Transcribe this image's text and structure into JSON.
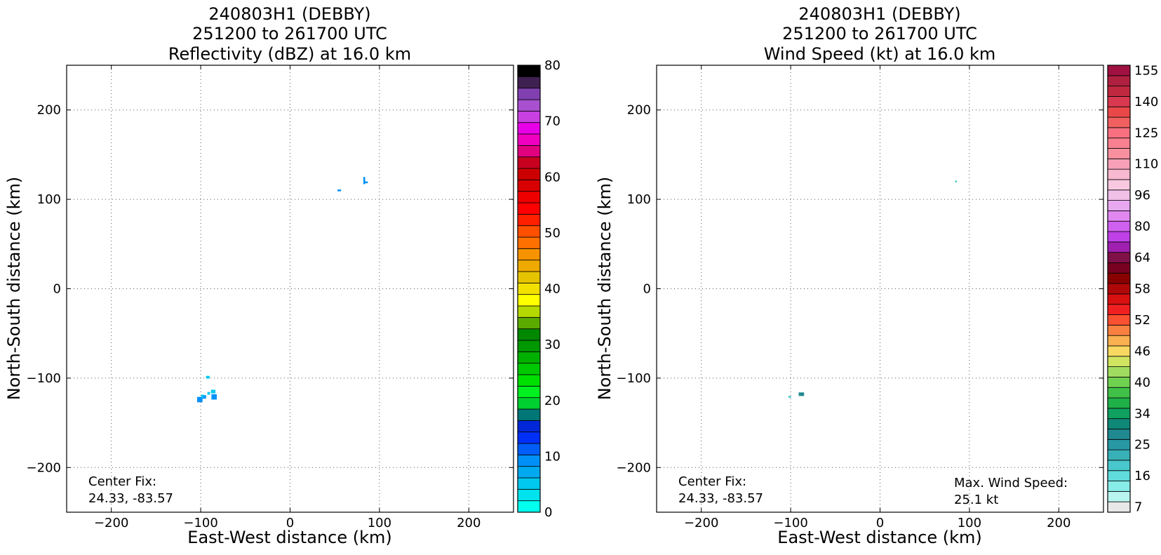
{
  "chart_data": [
    {
      "type": "heatmap",
      "title": [
        "240803H1 (DEBBY)",
        "251200 to 261700 UTC",
        "Reflectivity (dBZ) at 16.0 km"
      ],
      "xlabel": "East-West distance (km)",
      "ylabel": "North-South distance (km)",
      "xlim": [
        -250,
        250
      ],
      "ylim": [
        -250,
        250
      ],
      "xticks": [
        -200,
        -100,
        0,
        100,
        200
      ],
      "yticks": [
        -200,
        -100,
        0,
        100,
        200
      ],
      "grid": "dotted",
      "annotations": [
        {
          "text": [
            "Center Fix:",
            "24.33, -83.57"
          ],
          "position": "bottom-left"
        }
      ],
      "colorbar": {
        "min": 0,
        "max": 80,
        "tick_values": [
          0,
          10,
          20,
          30,
          40,
          50,
          60,
          70,
          80
        ],
        "colors": [
          "#00ffee",
          "#00e3ee",
          "#00c8ee",
          "#00a9f0",
          "#0090f8",
          "#005ef8",
          "#0030f8",
          "#0028d8",
          "#007777",
          "#00d030",
          "#00f020",
          "#00e000",
          "#00c800",
          "#00b000",
          "#009800",
          "#008800",
          "#5aaa00",
          "#b4d800",
          "#ffff00",
          "#f2e000",
          "#e6c400",
          "#eeaa00",
          "#f79200",
          "#ff7000",
          "#ff5000",
          "#ff2000",
          "#ff0000",
          "#ee0000",
          "#d80000",
          "#cc0000",
          "#c80020",
          "#e00080",
          "#f000c0",
          "#e800e8",
          "#c840e0",
          "#a850d0",
          "#8040b0",
          "#402050",
          "#000000"
        ]
      },
      "cells": [
        {
          "x": 55,
          "y": 110,
          "w": 4,
          "h": 2,
          "dbz": 10
        },
        {
          "x": 83,
          "y": 121,
          "w": 2,
          "h": 8,
          "dbz": 10
        },
        {
          "x": 85,
          "y": 119,
          "w": 4,
          "h": 2,
          "dbz": 10
        },
        {
          "x": -92,
          "y": -99,
          "w": 4,
          "h": 3,
          "dbz": 5
        },
        {
          "x": -101,
          "y": -124,
          "w": 6,
          "h": 6,
          "dbz": 10
        },
        {
          "x": -96,
          "y": -121,
          "w": 4,
          "h": 4,
          "dbz": 10
        },
        {
          "x": -85,
          "y": -121,
          "w": 6,
          "h": 6,
          "dbz": 10
        },
        {
          "x": -86,
          "y": -115,
          "w": 5,
          "h": 4,
          "dbz": 5
        },
        {
          "x": -91,
          "y": -117,
          "w": 3,
          "h": 3,
          "dbz": 5
        },
        {
          "x": -98,
          "y": -120,
          "w": 3,
          "h": 3,
          "dbz": 5
        }
      ]
    },
    {
      "type": "heatmap",
      "title": [
        "240803H1 (DEBBY)",
        "251200 to 261700 UTC",
        "Wind Speed (kt) at 16.0 km"
      ],
      "xlabel": "East-West distance (km)",
      "ylabel": "North-South distance (km)",
      "xlim": [
        -250,
        250
      ],
      "ylim": [
        -250,
        250
      ],
      "xticks": [
        -200,
        -100,
        0,
        100,
        200
      ],
      "yticks": [
        -200,
        -100,
        0,
        100,
        200
      ],
      "grid": "dotted",
      "annotations": [
        {
          "text": [
            "Center Fix:",
            "24.33, -83.57"
          ],
          "position": "bottom-left"
        },
        {
          "text": [
            "Max. Wind Speed:",
            "25.1 kt"
          ],
          "position": "bottom-right"
        }
      ],
      "colorbar": {
        "tick_labels": [
          "7",
          "16",
          "25",
          "34",
          "40",
          "46",
          "52",
          "58",
          "64",
          "80",
          "96",
          "110",
          "125",
          "140",
          "155"
        ],
        "tick_label_bins": [
          0,
          3,
          6,
          9,
          12,
          15,
          18,
          21,
          24,
          27,
          30,
          33,
          36,
          39,
          42
        ],
        "colors": [
          "#e8e8e8",
          "#b8f4f0",
          "#88ece8",
          "#60dcdc",
          "#48c8cc",
          "#38b0b8",
          "#2898a4",
          "#208890",
          "#108878",
          "#10a060",
          "#20b048",
          "#40c048",
          "#70d050",
          "#a0dc60",
          "#d0e460",
          "#f8d860",
          "#f8b050",
          "#f88040",
          "#f85030",
          "#f02020",
          "#d81010",
          "#b00808",
          "#880000",
          "#780020",
          "#801048",
          "#a020b0",
          "#c040e8",
          "#d060f0",
          "#e088f0",
          "#e8a8f0",
          "#f0c0e8",
          "#f8c8e0",
          "#f8b8d0",
          "#f8a0b8",
          "#f890a0",
          "#f88090",
          "#f87080",
          "#f06060",
          "#e84848",
          "#d83850",
          "#c02840",
          "#b02040",
          "#a01040"
        ]
      },
      "cells": [
        {
          "x": 85,
          "y": 120,
          "w": 2,
          "h": 2,
          "kt": 20
        },
        {
          "x": -101,
          "y": -121,
          "w": 3,
          "h": 2,
          "kt": 20
        },
        {
          "x": -88,
          "y": -118,
          "w": 6,
          "h": 4,
          "kt": 25
        }
      ]
    }
  ]
}
